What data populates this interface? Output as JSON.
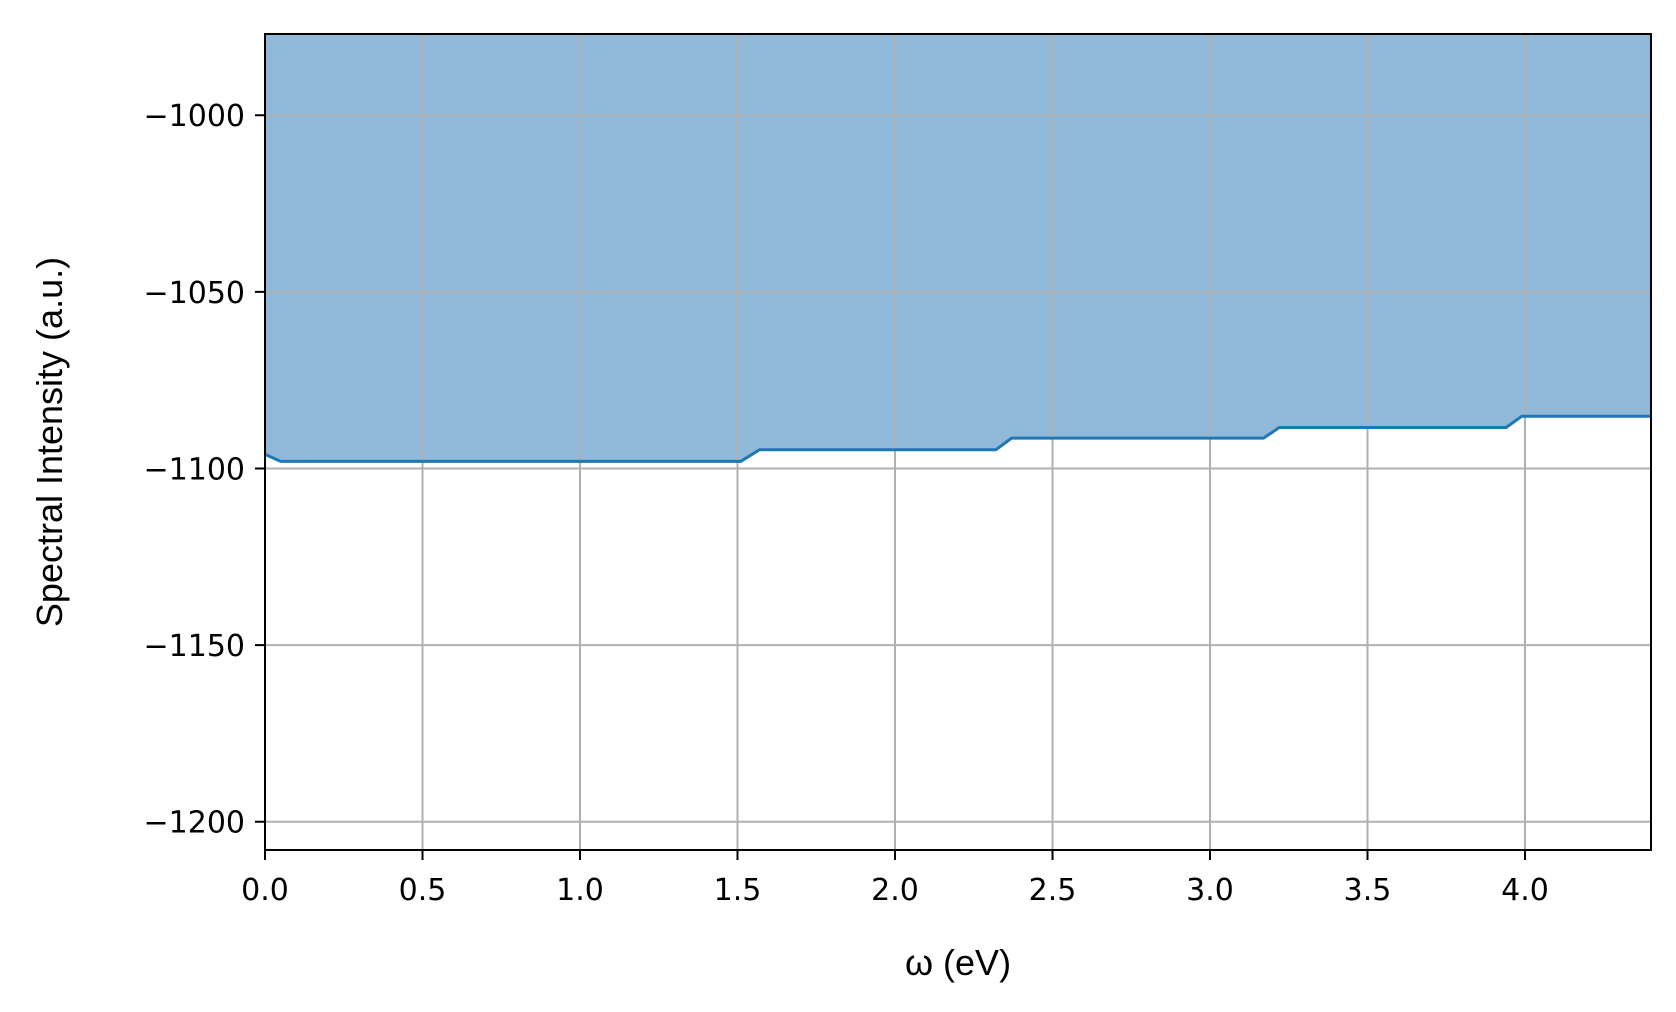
{
  "chart_data": {
    "type": "area",
    "xlabel": "ω (eV)",
    "ylabel": "Spectral Intensity (a.u.)",
    "xlim": [
      0.0,
      4.4
    ],
    "ylim": [
      -1208,
      -977
    ],
    "xticks": [
      0.0,
      0.5,
      1.0,
      1.5,
      2.0,
      2.5,
      3.0,
      3.5,
      4.0
    ],
    "xtick_labels": [
      "0.0",
      "0.5",
      "1.0",
      "1.5",
      "2.0",
      "2.5",
      "3.0",
      "3.5",
      "4.0"
    ],
    "yticks": [
      -1000,
      -1050,
      -1100,
      -1150,
      -1200
    ],
    "ytick_labels": [
      "−1000",
      "−1050",
      "−1100",
      "−1150",
      "−1200"
    ],
    "grid": true,
    "fill_to": "top",
    "series": [
      {
        "x": [
          0.0,
          0.05,
          1.51,
          1.57,
          2.32,
          2.37,
          3.17,
          3.22,
          3.94,
          3.99,
          4.4
        ],
        "y": [
          -1096,
          -1098,
          -1098,
          -1094.7,
          -1094.7,
          -1091.4,
          -1091.4,
          -1088.4,
          -1088.4,
          -1085.2,
          -1085.2
        ],
        "color": "#1f77b4",
        "fill_color": "#90b9d9"
      }
    ]
  }
}
